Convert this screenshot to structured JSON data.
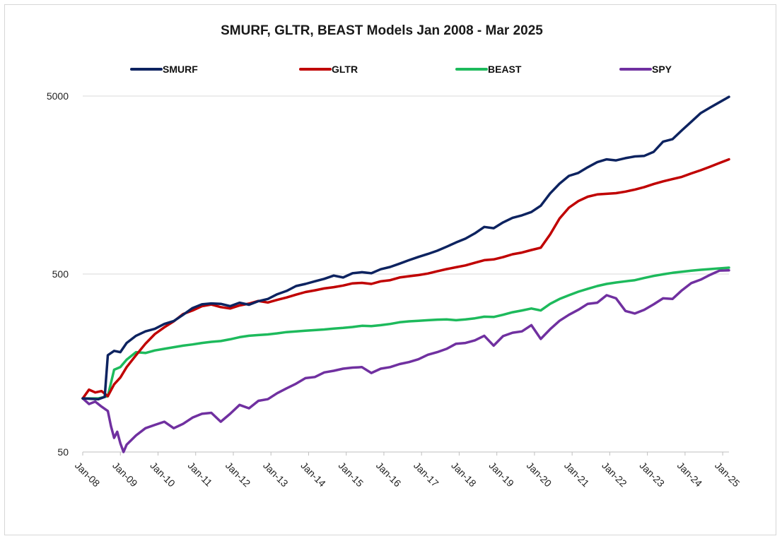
{
  "chart_data": {
    "type": "line",
    "title": "SMURF, GLTR, BEAST  Models Jan 2008 - Mar 2025",
    "xlabel": "",
    "ylabel": "",
    "y_scale": "log",
    "ylim": [
      50,
      5000
    ],
    "y_ticks": [
      "5000",
      "500",
      "50"
    ],
    "y_tick_values": [
      5000,
      500,
      50
    ],
    "x_ticks": [
      "Jan-08",
      "Jan-09",
      "Jan-10",
      "Jan-11",
      "Jan-12",
      "Jan-13",
      "Jan-14",
      "Jan-15",
      "Jan-16",
      "Jan-17",
      "Jan-18",
      "Jan-19",
      "Jan-20",
      "Jan-21",
      "Jan-22",
      "Jan-23",
      "Jan-24",
      "Jan-25"
    ],
    "x_range": [
      "Jan 2008",
      "Mar 2025"
    ],
    "grid": "horizontal",
    "legend_position": "top",
    "series": [
      {
        "name": "SMURF",
        "color": "#0d2360",
        "points": [
          [
            "2008-01",
            100
          ],
          [
            "2008-06",
            99
          ],
          [
            "2008-08",
            102
          ],
          [
            "2008-09",
            175
          ],
          [
            "2008-11",
            185
          ],
          [
            "2009-01",
            182
          ],
          [
            "2009-03",
            205
          ],
          [
            "2009-06",
            225
          ],
          [
            "2009-09",
            238
          ],
          [
            "2009-12",
            246
          ],
          [
            "2010-03",
            262
          ],
          [
            "2010-06",
            272
          ],
          [
            "2010-09",
            295
          ],
          [
            "2010-12",
            322
          ],
          [
            "2011-03",
            338
          ],
          [
            "2011-06",
            342
          ],
          [
            "2011-09",
            340
          ],
          [
            "2011-12",
            330
          ],
          [
            "2012-03",
            345
          ],
          [
            "2012-06",
            336
          ],
          [
            "2012-09",
            352
          ],
          [
            "2012-12",
            362
          ],
          [
            "2013-03",
            385
          ],
          [
            "2013-06",
            402
          ],
          [
            "2013-09",
            428
          ],
          [
            "2013-12",
            440
          ],
          [
            "2014-03",
            455
          ],
          [
            "2014-06",
            470
          ],
          [
            "2014-09",
            490
          ],
          [
            "2014-12",
            478
          ],
          [
            "2015-03",
            505
          ],
          [
            "2015-06",
            512
          ],
          [
            "2015-09",
            505
          ],
          [
            "2015-12",
            532
          ],
          [
            "2016-03",
            548
          ],
          [
            "2016-06",
            572
          ],
          [
            "2016-09",
            598
          ],
          [
            "2016-12",
            624
          ],
          [
            "2017-03",
            648
          ],
          [
            "2017-06",
            676
          ],
          [
            "2017-09",
            712
          ],
          [
            "2017-12",
            752
          ],
          [
            "2018-03",
            790
          ],
          [
            "2018-06",
            846
          ],
          [
            "2018-09",
            920
          ],
          [
            "2018-12",
            905
          ],
          [
            "2019-03",
            975
          ],
          [
            "2019-06",
            1035
          ],
          [
            "2019-09",
            1068
          ],
          [
            "2019-12",
            1115
          ],
          [
            "2020-03",
            1210
          ],
          [
            "2020-06",
            1420
          ],
          [
            "2020-09",
            1610
          ],
          [
            "2020-12",
            1780
          ],
          [
            "2021-03",
            1850
          ],
          [
            "2021-06",
            1990
          ],
          [
            "2021-09",
            2125
          ],
          [
            "2021-12",
            2205
          ],
          [
            "2022-03",
            2175
          ],
          [
            "2022-06",
            2240
          ],
          [
            "2022-09",
            2290
          ],
          [
            "2022-12",
            2305
          ],
          [
            "2023-03",
            2430
          ],
          [
            "2023-06",
            2770
          ],
          [
            "2023-09",
            2860
          ],
          [
            "2023-12",
            3210
          ],
          [
            "2024-03",
            3590
          ],
          [
            "2024-06",
            4010
          ],
          [
            "2024-09",
            4310
          ],
          [
            "2024-12",
            4620
          ],
          [
            "2025-03",
            4950
          ]
        ]
      },
      {
        "name": "GLTR",
        "color": "#c00000",
        "points": [
          [
            "2008-01",
            100
          ],
          [
            "2008-03",
            112
          ],
          [
            "2008-05",
            108
          ],
          [
            "2008-07",
            110
          ],
          [
            "2008-09",
            103
          ],
          [
            "2008-11",
            120
          ],
          [
            "2009-01",
            131
          ],
          [
            "2009-03",
            150
          ],
          [
            "2009-06",
            175
          ],
          [
            "2009-09",
            203
          ],
          [
            "2009-12",
            230
          ],
          [
            "2010-03",
            251
          ],
          [
            "2010-06",
            271
          ],
          [
            "2010-09",
            298
          ],
          [
            "2010-12",
            312
          ],
          [
            "2011-03",
            330
          ],
          [
            "2011-06",
            337
          ],
          [
            "2011-09",
            326
          ],
          [
            "2011-12",
            320
          ],
          [
            "2012-03",
            333
          ],
          [
            "2012-06",
            341
          ],
          [
            "2012-09",
            353
          ],
          [
            "2012-12",
            346
          ],
          [
            "2013-03",
            358
          ],
          [
            "2013-06",
            369
          ],
          [
            "2013-09",
            383
          ],
          [
            "2013-12",
            396
          ],
          [
            "2014-03",
            405
          ],
          [
            "2014-06",
            415
          ],
          [
            "2014-09",
            422
          ],
          [
            "2014-12",
            431
          ],
          [
            "2015-03",
            443
          ],
          [
            "2015-06",
            446
          ],
          [
            "2015-09",
            440
          ],
          [
            "2015-12",
            455
          ],
          [
            "2016-03",
            462
          ],
          [
            "2016-06",
            478
          ],
          [
            "2016-09",
            486
          ],
          [
            "2016-12",
            493
          ],
          [
            "2017-03",
            503
          ],
          [
            "2017-06",
            518
          ],
          [
            "2017-09",
            533
          ],
          [
            "2017-12",
            546
          ],
          [
            "2018-03",
            559
          ],
          [
            "2018-06",
            578
          ],
          [
            "2018-09",
            598
          ],
          [
            "2018-12",
            604
          ],
          [
            "2019-03",
            622
          ],
          [
            "2019-06",
            646
          ],
          [
            "2019-09",
            660
          ],
          [
            "2019-12",
            682
          ],
          [
            "2020-03",
            703
          ],
          [
            "2020-06",
            835
          ],
          [
            "2020-09",
            1025
          ],
          [
            "2020-12",
            1180
          ],
          [
            "2021-03",
            1285
          ],
          [
            "2021-06",
            1360
          ],
          [
            "2021-09",
            1400
          ],
          [
            "2021-12",
            1412
          ],
          [
            "2022-03",
            1423
          ],
          [
            "2022-06",
            1452
          ],
          [
            "2022-09",
            1492
          ],
          [
            "2022-12",
            1540
          ],
          [
            "2023-03",
            1602
          ],
          [
            "2023-06",
            1658
          ],
          [
            "2023-09",
            1708
          ],
          [
            "2023-12",
            1758
          ],
          [
            "2024-03",
            1838
          ],
          [
            "2024-06",
            1915
          ],
          [
            "2024-09",
            2005
          ],
          [
            "2024-12",
            2105
          ],
          [
            "2025-03",
            2205
          ]
        ]
      },
      {
        "name": "BEAST",
        "color": "#1dba5c",
        "points": [
          [
            "2008-01",
            100
          ],
          [
            "2008-06",
            100
          ],
          [
            "2008-09",
            103
          ],
          [
            "2008-11",
            145
          ],
          [
            "2009-01",
            150
          ],
          [
            "2009-03",
            165
          ],
          [
            "2009-06",
            182
          ],
          [
            "2009-09",
            180
          ],
          [
            "2009-12",
            186
          ],
          [
            "2010-03",
            190
          ],
          [
            "2010-06",
            194
          ],
          [
            "2010-09",
            198
          ],
          [
            "2010-12",
            201
          ],
          [
            "2011-03",
            205
          ],
          [
            "2011-06",
            208
          ],
          [
            "2011-09",
            210
          ],
          [
            "2011-12",
            215
          ],
          [
            "2012-03",
            221
          ],
          [
            "2012-06",
            225
          ],
          [
            "2012-09",
            227
          ],
          [
            "2012-12",
            229
          ],
          [
            "2013-03",
            232
          ],
          [
            "2013-06",
            236
          ],
          [
            "2013-09",
            238
          ],
          [
            "2013-12",
            240
          ],
          [
            "2014-03",
            242
          ],
          [
            "2014-06",
            244
          ],
          [
            "2014-09",
            247
          ],
          [
            "2014-12",
            249
          ],
          [
            "2015-03",
            252
          ],
          [
            "2015-06",
            256
          ],
          [
            "2015-09",
            255
          ],
          [
            "2015-12",
            258
          ],
          [
            "2016-03",
            262
          ],
          [
            "2016-06",
            268
          ],
          [
            "2016-09",
            271
          ],
          [
            "2016-12",
            273
          ],
          [
            "2017-03",
            275
          ],
          [
            "2017-06",
            277
          ],
          [
            "2017-09",
            278
          ],
          [
            "2017-12",
            275
          ],
          [
            "2018-03",
            278
          ],
          [
            "2018-06",
            282
          ],
          [
            "2018-09",
            288
          ],
          [
            "2018-12",
            287
          ],
          [
            "2019-03",
            295
          ],
          [
            "2019-06",
            305
          ],
          [
            "2019-09",
            312
          ],
          [
            "2019-12",
            320
          ],
          [
            "2020-03",
            312
          ],
          [
            "2020-06",
            340
          ],
          [
            "2020-09",
            362
          ],
          [
            "2020-12",
            380
          ],
          [
            "2021-03",
            398
          ],
          [
            "2021-06",
            413
          ],
          [
            "2021-09",
            428
          ],
          [
            "2021-12",
            440
          ],
          [
            "2022-03",
            448
          ],
          [
            "2022-06",
            455
          ],
          [
            "2022-09",
            462
          ],
          [
            "2022-12",
            475
          ],
          [
            "2023-03",
            488
          ],
          [
            "2023-06",
            498
          ],
          [
            "2023-09",
            508
          ],
          [
            "2023-12",
            515
          ],
          [
            "2024-03",
            522
          ],
          [
            "2024-06",
            528
          ],
          [
            "2024-09",
            533
          ],
          [
            "2024-12",
            538
          ],
          [
            "2025-03",
            543
          ]
        ]
      },
      {
        "name": "SPY",
        "color": "#7030a0",
        "points": [
          [
            "2008-01",
            100
          ],
          [
            "2008-03",
            93
          ],
          [
            "2008-05",
            96
          ],
          [
            "2008-07",
            90
          ],
          [
            "2008-09",
            85
          ],
          [
            "2008-10",
            70
          ],
          [
            "2008-11",
            60
          ],
          [
            "2008-12",
            65
          ],
          [
            "2009-01",
            56
          ],
          [
            "2009-02",
            50
          ],
          [
            "2009-03",
            55
          ],
          [
            "2009-06",
            62
          ],
          [
            "2009-09",
            68
          ],
          [
            "2009-12",
            71
          ],
          [
            "2010-03",
            74
          ],
          [
            "2010-06",
            68
          ],
          [
            "2010-09",
            72
          ],
          [
            "2010-12",
            78
          ],
          [
            "2011-03",
            82
          ],
          [
            "2011-06",
            83
          ],
          [
            "2011-09",
            74
          ],
          [
            "2011-12",
            82
          ],
          [
            "2012-03",
            92
          ],
          [
            "2012-06",
            88
          ],
          [
            "2012-09",
            97
          ],
          [
            "2012-12",
            99
          ],
          [
            "2013-03",
            107
          ],
          [
            "2013-06",
            114
          ],
          [
            "2013-09",
            121
          ],
          [
            "2013-12",
            130
          ],
          [
            "2014-03",
            132
          ],
          [
            "2014-06",
            140
          ],
          [
            "2014-09",
            143
          ],
          [
            "2014-12",
            147
          ],
          [
            "2015-03",
            149
          ],
          [
            "2015-06",
            150
          ],
          [
            "2015-09",
            139
          ],
          [
            "2015-12",
            147
          ],
          [
            "2016-03",
            150
          ],
          [
            "2016-06",
            156
          ],
          [
            "2016-09",
            160
          ],
          [
            "2016-12",
            166
          ],
          [
            "2017-03",
            176
          ],
          [
            "2017-06",
            182
          ],
          [
            "2017-09",
            190
          ],
          [
            "2017-12",
            203
          ],
          [
            "2018-03",
            205
          ],
          [
            "2018-06",
            212
          ],
          [
            "2018-09",
            225
          ],
          [
            "2018-12",
            198
          ],
          [
            "2019-03",
            224
          ],
          [
            "2019-06",
            234
          ],
          [
            "2019-09",
            238
          ],
          [
            "2019-12",
            258
          ],
          [
            "2020-03",
            216
          ],
          [
            "2020-06",
            245
          ],
          [
            "2020-09",
            273
          ],
          [
            "2020-12",
            295
          ],
          [
            "2021-03",
            315
          ],
          [
            "2021-06",
            340
          ],
          [
            "2021-09",
            345
          ],
          [
            "2021-12",
            380
          ],
          [
            "2022-03",
            365
          ],
          [
            "2022-06",
            310
          ],
          [
            "2022-09",
            300
          ],
          [
            "2022-12",
            315
          ],
          [
            "2023-03",
            338
          ],
          [
            "2023-06",
            365
          ],
          [
            "2023-09",
            362
          ],
          [
            "2023-12",
            405
          ],
          [
            "2024-03",
            445
          ],
          [
            "2024-06",
            465
          ],
          [
            "2024-09",
            495
          ],
          [
            "2024-12",
            523
          ],
          [
            "2025-03",
            525
          ]
        ]
      }
    ]
  }
}
